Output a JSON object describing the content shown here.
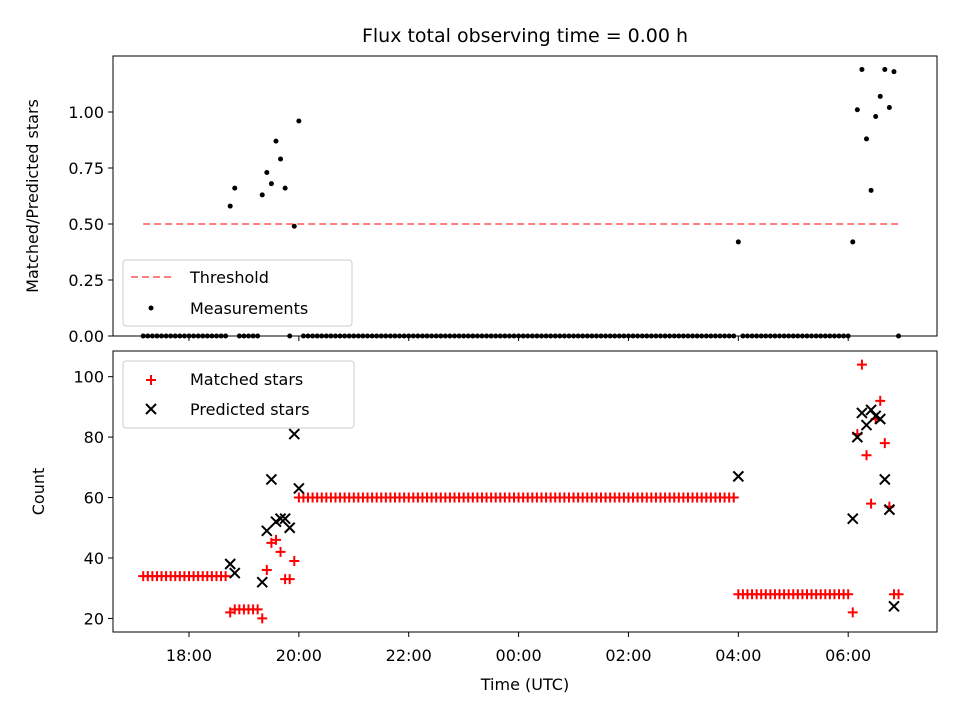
{
  "title": "Flux total observing time = 0.00 h",
  "chart_data": [
    {
      "type": "scatter",
      "ylabel": "Matched/Predicted stars",
      "xlabel": "",
      "xlim": [
        "16:37",
        "07:37"
      ],
      "ylim": [
        0,
        1.25
      ],
      "yticks": [
        0.0,
        0.25,
        0.5,
        0.75,
        1.0
      ],
      "ytick_labels": [
        "0.00",
        "0.25",
        "0.50",
        "0.75",
        "1.00"
      ],
      "legend": "lower-left",
      "series": [
        {
          "name": "Threshold",
          "style": "dashed-line",
          "color": "#ff7f7f",
          "x": [
            "17:10",
            "06:55"
          ],
          "y": [
            0.5,
            0.5
          ]
        },
        {
          "name": "Measurements",
          "style": "dot",
          "color": "#000000",
          "points": [
            [
              "18:45",
              0.58
            ],
            [
              "18:50",
              0.66
            ],
            [
              "19:20",
              0.63
            ],
            [
              "19:25",
              0.73
            ],
            [
              "19:30",
              0.68
            ],
            [
              "19:35",
              0.87
            ],
            [
              "19:40",
              0.79
            ],
            [
              "19:45",
              0.66
            ],
            [
              "19:55",
              0.49
            ],
            [
              "20:00",
              0.96
            ],
            [
              "04:00",
              0.42
            ],
            [
              "06:05",
              0.42
            ],
            [
              "06:10",
              1.01
            ],
            [
              "06:15",
              1.19
            ],
            [
              "06:20",
              0.88
            ],
            [
              "06:25",
              0.65
            ],
            [
              "06:30",
              0.98
            ],
            [
              "06:35",
              1.07
            ],
            [
              "06:40",
              1.19
            ],
            [
              "06:45",
              1.02
            ],
            [
              "06:50",
              1.18
            ],
            [
              "06:55",
              0.0
            ]
          ],
          "zero_runs": [
            [
              "17:10",
              "18:40",
              5
            ],
            [
              "18:55",
              "19:15",
              5
            ],
            [
              "19:50",
              "19:50",
              5
            ],
            [
              "20:05",
              "23:55",
              5
            ],
            [
              "00:00",
              "03:55",
              5
            ],
            [
              "04:05",
              "06:00",
              5
            ]
          ]
        }
      ]
    },
    {
      "type": "scatter",
      "ylabel": "Count",
      "xlabel": "Time (UTC)",
      "xlim": [
        "16:37",
        "07:37"
      ],
      "ylim": [
        15.5,
        108.5
      ],
      "yticks": [
        20,
        40,
        60,
        80,
        100
      ],
      "xticks": [
        "18:00",
        "20:00",
        "22:00",
        "00:00",
        "02:00",
        "04:00",
        "06:00"
      ],
      "legend": "top-left",
      "series": [
        {
          "name": "Matched stars",
          "marker": "+",
          "color": "#ff0000",
          "points": [
            [
              "18:45",
              22
            ],
            [
              "18:50",
              23
            ],
            [
              "18:55",
              23
            ],
            [
              "19:00",
              23
            ],
            [
              "19:05",
              23
            ],
            [
              "19:10",
              23
            ],
            [
              "19:15",
              23
            ],
            [
              "19:20",
              20
            ],
            [
              "19:25",
              36
            ],
            [
              "19:30",
              45
            ],
            [
              "19:35",
              46
            ],
            [
              "19:40",
              42
            ],
            [
              "19:45",
              33
            ],
            [
              "19:50",
              33
            ],
            [
              "19:55",
              39
            ],
            [
              "06:05",
              22
            ],
            [
              "06:10",
              81
            ],
            [
              "06:15",
              104
            ],
            [
              "06:20",
              74
            ],
            [
              "06:25",
              58
            ],
            [
              "06:30",
              86
            ],
            [
              "06:35",
              92
            ],
            [
              "06:40",
              78
            ],
            [
              "06:45",
              57
            ],
            [
              "06:50",
              28
            ],
            [
              "06:55",
              28
            ]
          ],
          "runs": [
            [
              "17:10",
              "18:40",
              5,
              34
            ],
            [
              "20:00",
              "23:55",
              5,
              60
            ],
            [
              "00:00",
              "03:55",
              5,
              60
            ],
            [
              "04:00",
              "06:00",
              5,
              28
            ]
          ]
        },
        {
          "name": "Predicted stars",
          "marker": "x",
          "color": "#000000",
          "points": [
            [
              "18:45",
              38
            ],
            [
              "18:50",
              35
            ],
            [
              "19:20",
              32
            ],
            [
              "19:25",
              49
            ],
            [
              "19:30",
              66
            ],
            [
              "19:35",
              52
            ],
            [
              "19:40",
              53
            ],
            [
              "19:45",
              53
            ],
            [
              "19:50",
              50
            ],
            [
              "19:55",
              81
            ],
            [
              "20:00",
              63
            ],
            [
              "04:00",
              67
            ],
            [
              "06:05",
              53
            ],
            [
              "06:10",
              80
            ],
            [
              "06:15",
              88
            ],
            [
              "06:20",
              84
            ],
            [
              "06:25",
              89
            ],
            [
              "06:30",
              87
            ],
            [
              "06:35",
              86
            ],
            [
              "06:40",
              66
            ],
            [
              "06:45",
              56
            ],
            [
              "06:50",
              24
            ]
          ]
        }
      ]
    }
  ]
}
